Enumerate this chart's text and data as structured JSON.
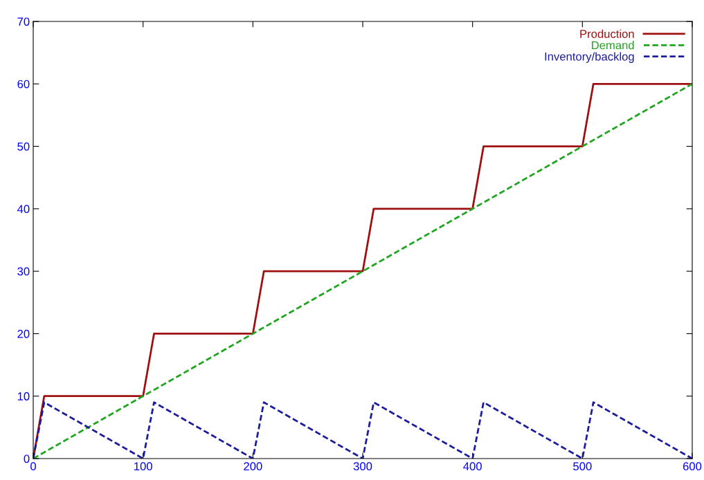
{
  "chart_data": {
    "type": "line",
    "xlim": [
      0,
      600
    ],
    "xticks": [
      0,
      100,
      200,
      300,
      400,
      500,
      600
    ],
    "ylim": [
      0,
      70
    ],
    "yticks": [
      0,
      10,
      20,
      30,
      40,
      50,
      60,
      70
    ],
    "grid": false,
    "legend": "top right",
    "marker": "none",
    "series": [
      {
        "name": "Production",
        "color": "#a00f0f",
        "line_style": "solid",
        "x": [
          0,
          10,
          100,
          110,
          200,
          210,
          300,
          310,
          400,
          410,
          500,
          510,
          600
        ],
        "values": [
          0,
          10,
          10,
          20,
          20,
          30,
          30,
          40,
          40,
          50,
          50,
          60,
          60
        ]
      },
      {
        "name": "Demand",
        "color": "#1fa51f",
        "line_style": "dashed",
        "x": [
          0,
          600
        ],
        "values": [
          0,
          60
        ]
      },
      {
        "name": "Inventory/backlog",
        "color": "#1c1c9c",
        "line_style": "dashed",
        "x": [
          0,
          10,
          100,
          110,
          200,
          210,
          300,
          310,
          400,
          410,
          500,
          510,
          600
        ],
        "values": [
          0,
          9,
          0,
          9,
          0,
          9,
          0,
          9,
          0,
          9,
          0,
          9,
          0
        ]
      }
    ]
  }
}
